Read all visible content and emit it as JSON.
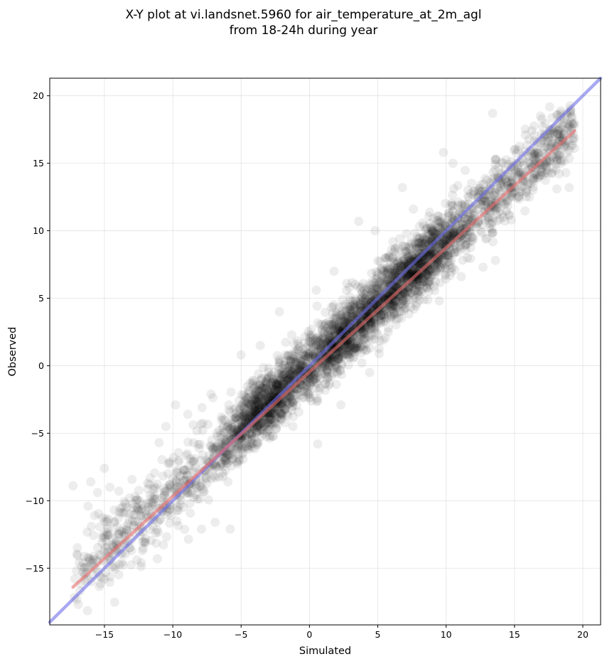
{
  "chart_data": {
    "type": "scatter",
    "title": "X-Y plot at vi.landsnet.5960 for air_temperature_at_2m_agl",
    "subtitle": "from 18-24h during year",
    "xlabel": "Simulated",
    "ylabel": "Observed",
    "xlim": [
      -19.0,
      21.3
    ],
    "ylim": [
      -19.2,
      21.3
    ],
    "xticks": [
      -15,
      -10,
      -5,
      0,
      5,
      10,
      15,
      20
    ],
    "yticks": [
      -15,
      -10,
      -5,
      0,
      5,
      10,
      15,
      20
    ],
    "xtick_labels": [
      "−15",
      "−10",
      "−5",
      "0",
      "5",
      "10",
      "15",
      "20"
    ],
    "ytick_labels": [
      "−15",
      "−10",
      "−5",
      "0",
      "5",
      "10",
      "15",
      "20"
    ],
    "grid": true,
    "point_color": "#000000",
    "point_alpha": 0.07,
    "scatter_cloud": {
      "approx_point_count": 4000,
      "trend": "observed ≈ simulated",
      "x_range": [
        -17.3,
        19.4
      ],
      "spread_sd": 1.7,
      "dense_core": [
        [
          -3,
          -3
        ],
        [
          3,
          3
        ],
        [
          8,
          7
        ]
      ]
    },
    "sample_points": [
      {
        "x": -17.3,
        "y": -8.9
      },
      {
        "x": -16.0,
        "y": -8.6
      },
      {
        "x": -15.5,
        "y": -9.4
      },
      {
        "x": -15.0,
        "y": -7.6
      },
      {
        "x": -14.6,
        "y": -9.0
      },
      {
        "x": -14.8,
        "y": -12.0
      },
      {
        "x": -14.1,
        "y": -13.3
      },
      {
        "x": -13.5,
        "y": -12.6
      },
      {
        "x": -15.0,
        "y": -15.8
      },
      {
        "x": -14.4,
        "y": -14.9
      },
      {
        "x": -12.3,
        "y": -14.6
      },
      {
        "x": -11.0,
        "y": -5.7
      },
      {
        "x": -10.5,
        "y": -4.5
      },
      {
        "x": -9.8,
        "y": -2.9
      },
      {
        "x": -8.9,
        "y": -3.6
      },
      {
        "x": -7.9,
        "y": -12.1
      },
      {
        "x": -6.9,
        "y": -11.6
      },
      {
        "x": -5.8,
        "y": -12.1
      },
      {
        "x": -7.2,
        "y": -2.1
      },
      {
        "x": -5.0,
        "y": 0.8
      },
      {
        "x": -3.6,
        "y": 1.5
      },
      {
        "x": -2.2,
        "y": 4.0
      },
      {
        "x": 0.5,
        "y": 5.6
      },
      {
        "x": 1.8,
        "y": 7.0
      },
      {
        "x": 0.6,
        "y": -5.8
      },
      {
        "x": 2.3,
        "y": -2.9
      },
      {
        "x": 4.4,
        "y": -0.5
      },
      {
        "x": 5.1,
        "y": 0.9
      },
      {
        "x": 3.6,
        "y": 10.7
      },
      {
        "x": 4.8,
        "y": 10.0
      },
      {
        "x": 6.8,
        "y": 13.2
      },
      {
        "x": 7.6,
        "y": 11.6
      },
      {
        "x": 9.8,
        "y": 15.8
      },
      {
        "x": 10.5,
        "y": 15.0
      },
      {
        "x": 9.5,
        "y": 4.8
      },
      {
        "x": 11.1,
        "y": 6.6
      },
      {
        "x": 12.7,
        "y": 7.3
      },
      {
        "x": 13.6,
        "y": 7.8
      },
      {
        "x": 14.6,
        "y": 11.2
      },
      {
        "x": 16.1,
        "y": 12.5
      },
      {
        "x": 15.8,
        "y": 17.1
      },
      {
        "x": 13.4,
        "y": 18.7
      },
      {
        "x": 16.9,
        "y": 18.5
      },
      {
        "x": 18.1,
        "y": 13.1
      },
      {
        "x": 19.0,
        "y": 13.2
      },
      {
        "x": 18.4,
        "y": 15.0
      },
      {
        "x": 19.1,
        "y": 18.7
      },
      {
        "x": 17.7,
        "y": 17.5
      }
    ],
    "lines": [
      {
        "role": "one-to-one reference",
        "color": "#6e6ee8",
        "alpha": 0.6,
        "x": [
          -19.0,
          21.3
        ],
        "y": [
          -19.0,
          21.3
        ]
      },
      {
        "role": "regression fit",
        "color": "#e86e6e",
        "alpha": 0.6,
        "x": [
          -17.3,
          19.4
        ],
        "y": [
          -16.4,
          17.4
        ]
      }
    ]
  }
}
